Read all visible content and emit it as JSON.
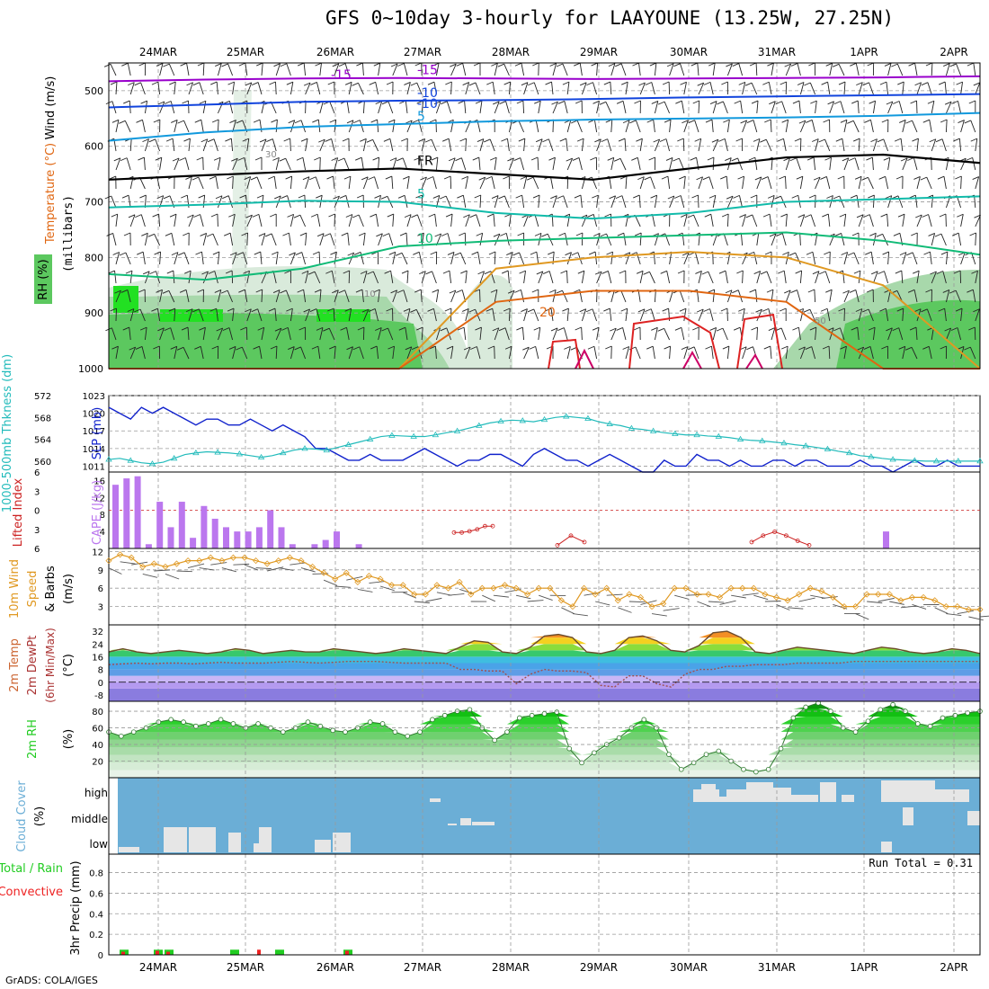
{
  "title": "GFS 0~10day 3-hourly for LAAYOUNE (13.25W, 27.25N)",
  "footer": "GrADS: COLA/IGES",
  "colors": {
    "rh_light": "#d9eadb",
    "rh_mid": "#a8d8ab",
    "rh_dark": "#5cc85f",
    "rh_bright": "#22e022",
    "t_violet": "#9900cc",
    "t_blue": "#1144dd",
    "t_sky": "#1199dd",
    "t_fr": "#000000",
    "t_teal": "#11bbaa",
    "t_green": "#11bb77",
    "t_orange": "#e09922",
    "t_dorange": "#e06611",
    "t_red": "#dd2222",
    "t_magenta": "#cc0066",
    "slp": "#1122cc",
    "thick": "#22bbbb",
    "cape": "#bb77ee",
    "li": "#cc2222",
    "wind": "#e09922",
    "dewpt": "#a05050",
    "rh2m": "#22cc22",
    "cloud": "#6baed6",
    "cloud_gap": "#e6e6e6",
    "precip_total": "#22cc22",
    "precip_conv": "#ee2222"
  },
  "chart_data": [
    {
      "type": "heatmap",
      "panel": "upper_air",
      "title": "GFS 0~10day 3-hourly for LAAYOUNE (13.25W, 27.25N)",
      "legend": [
        "Wind (m/s)",
        "Temperature (°C)",
        "RH (%)"
      ],
      "ylabel": "(millibars)",
      "y_reversed": true,
      "ylim": [
        1000,
        450
      ],
      "yticks": [
        500,
        600,
        700,
        800,
        900,
        1000
      ],
      "x_ticks": [
        "24MAR",
        "25MAR",
        "26MAR",
        "27MAR",
        "28MAR",
        "29MAR",
        "30MAR",
        "31MAR",
        "1APR",
        "2APR"
      ],
      "contour_labels": [
        "-15",
        "-10",
        "-5",
        "FR",
        "5",
        "10",
        "15",
        "20",
        "10",
        "30",
        "50"
      ],
      "temperature_levels": [
        {
          "label": "-15",
          "pressure": [
            483,
            480,
            478,
            477,
            478,
            479,
            478,
            477,
            476,
            474
          ]
        },
        {
          "label": "-10",
          "pressure": [
            530,
            525,
            520,
            518,
            517,
            515,
            512,
            510,
            508,
            506
          ]
        },
        {
          "label": "-5",
          "pressure": [
            590,
            575,
            565,
            560,
            555,
            552,
            550,
            548,
            545,
            540
          ]
        },
        {
          "label": "FR",
          "pressure": [
            660,
            652,
            645,
            640,
            650,
            660,
            640,
            620,
            615,
            630
          ]
        },
        {
          "label": "5",
          "pressure": [
            710,
            705,
            698,
            700,
            720,
            730,
            720,
            700,
            695,
            690
          ]
        },
        {
          "label": "10",
          "pressure": [
            830,
            840,
            820,
            780,
            770,
            765,
            760,
            755,
            770,
            795
          ]
        },
        {
          "label": "15",
          "pressure": [
            1000,
            1000,
            1000,
            1000,
            820,
            800,
            790,
            800,
            850,
            1000
          ]
        },
        {
          "label": "20",
          "pressure": [
            1000,
            1000,
            1000,
            1000,
            880,
            860,
            860,
            880,
            1000,
            1000
          ]
        }
      ]
    },
    {
      "type": "line",
      "panel": "slp_thickness",
      "ylabel_left": "1000-500mb Thkness (dm)",
      "ylabel_right": "SLP (mb)",
      "yticks_left": [
        560,
        564,
        568,
        572
      ],
      "yticks_right": [
        1011,
        1014,
        1017,
        1020,
        1023
      ],
      "ylim_right": [
        1010,
        1023
      ],
      "series": [
        {
          "name": "SLP (mb)",
          "values": [
            1021,
            1020,
            1019,
            1021,
            1020,
            1021,
            1020,
            1019,
            1018,
            1019,
            1019,
            1018,
            1018,
            1019,
            1018,
            1017,
            1018,
            1017,
            1016,
            1014,
            1014,
            1013,
            1012,
            1012,
            1013,
            1012,
            1012,
            1012,
            1013,
            1014,
            1013,
            1012,
            1011,
            1012,
            1012,
            1013,
            1013,
            1012,
            1011,
            1013,
            1014,
            1013,
            1012,
            1012,
            1011,
            1012,
            1013,
            1012,
            1011,
            1010,
            1010,
            1012,
            1011,
            1011,
            1013,
            1012,
            1012,
            1011,
            1012,
            1011,
            1011,
            1012,
            1012,
            1011,
            1012,
            1012,
            1011,
            1011,
            1011,
            1012,
            1011,
            1011,
            1010,
            1011,
            1012,
            1011,
            1011,
            1012,
            1011,
            1011,
            1011
          ]
        },
        {
          "name": "1000-500mb Thkness (dm)",
          "values": [
            560.3,
            560.5,
            560.1,
            559.7,
            559.5,
            559.8,
            560.5,
            561.2,
            561.5,
            561.7,
            561.6,
            561.5,
            561.3,
            561.0,
            560.7,
            561.0,
            561.5,
            562.0,
            562.3,
            562.2,
            562.0,
            562.5,
            563.0,
            563.5,
            564.0,
            564.5,
            564.7,
            564.6,
            564.5,
            564.5,
            564.8,
            565.2,
            565.5,
            566.0,
            566.5,
            567.0,
            567.3,
            567.5,
            567.4,
            567.2,
            567.6,
            568.0,
            568.2,
            568.0,
            567.8,
            567.2,
            566.8,
            566.5,
            566.0,
            565.8,
            565.5,
            565.2,
            565.0,
            564.8,
            564.8,
            564.6,
            564.5,
            564.3,
            564.0,
            563.8,
            563.7,
            563.5,
            563.3,
            563.0,
            562.8,
            562.5,
            562.2,
            561.8,
            561.5,
            561.0,
            560.8,
            560.5,
            560.3,
            560.2,
            560.1,
            560.0,
            560.0,
            560.0,
            560.0,
            560.0,
            560.0
          ]
        }
      ]
    },
    {
      "type": "bar",
      "panel": "cape_li",
      "ylabel_left": "Lifted Index",
      "ylabel_right": "CAPE (J/kg)",
      "yticks_left": [
        -6,
        -3,
        0,
        3,
        6
      ],
      "yticks_right": [
        4,
        8,
        12,
        16
      ],
      "series": [
        {
          "name": "CAPE (J/kg)",
          "values": [
            15,
            16.5,
            17,
            1,
            11,
            5,
            11,
            2.5,
            10,
            7,
            5,
            4,
            4,
            5,
            9,
            5,
            1,
            0,
            1,
            2,
            4,
            0,
            1
          ]
        },
        {
          "name": "Lifted Index",
          "values": [
            null,
            null,
            null,
            null,
            null,
            null,
            null,
            null,
            null,
            null,
            null,
            null,
            null,
            null,
            null,
            null,
            null,
            null,
            null,
            null,
            null,
            null,
            null,
            null,
            null,
            null,
            null,
            null,
            null,
            null,
            null,
            null,
            null,
            null,
            null,
            3.5,
            3.5,
            3.3,
            3.5,
            4,
            3,
            3.4,
            4.5,
            6,
            6,
            6,
            4.5,
            4,
            3.8,
            4.5
          ]
        }
      ]
    },
    {
      "type": "line",
      "panel": "wind10m",
      "ylabel": "10m Wind Speed & Barbs (m/s)",
      "yticks": [
        3,
        6,
        9,
        12
      ],
      "ylim": [
        0,
        12
      ],
      "series": [
        {
          "name": "10m Wind Speed",
          "values": [
            10.5,
            11.5,
            11,
            9.5,
            10,
            9.5,
            10,
            10.5,
            10.5,
            11,
            10.5,
            11,
            11,
            10.5,
            10,
            10.5,
            11,
            10.5,
            9.5,
            8.5,
            7.5,
            8.5,
            7,
            8,
            7.5,
            6.5,
            6.5,
            5,
            5,
            6.5,
            6,
            7,
            5,
            6,
            6,
            6.5,
            6,
            5,
            6,
            6,
            4,
            3,
            6,
            5,
            6,
            4,
            5,
            4.5,
            3,
            3.5,
            6,
            6,
            5,
            5,
            4.5,
            6,
            6,
            6,
            5,
            4.5,
            4,
            5,
            6,
            5.5,
            4.5,
            3,
            3,
            5,
            5,
            5,
            4,
            4.5,
            4.5,
            4,
            3,
            3,
            2.5,
            2.5
          ]
        }
      ]
    },
    {
      "type": "area",
      "panel": "temp2m",
      "ylabel": "2m Temp 2m DewPt (6hr Min/Max) (°C)",
      "yticks": [
        -8,
        0,
        8,
        16,
        24,
        32
      ],
      "ylim": [
        -12,
        36
      ],
      "series": [
        {
          "name": "2m Temp",
          "values": [
            19,
            21,
            19,
            18,
            19,
            20,
            19,
            18,
            19,
            21,
            20,
            18,
            19,
            20,
            19,
            19,
            21,
            20,
            19,
            18,
            19,
            21,
            20,
            19,
            18,
            22,
            26,
            25,
            19,
            18,
            22,
            29,
            30,
            28,
            19,
            18,
            20,
            28,
            29,
            26,
            20,
            19,
            23,
            31,
            32,
            28,
            19,
            18,
            20,
            22,
            21,
            20,
            19,
            18,
            20,
            22,
            21,
            19,
            18,
            19,
            21,
            20,
            18
          ]
        },
        {
          "name": "2m DewPt",
          "values": [
            11,
            11.5,
            12,
            11.5,
            12,
            12,
            11.5,
            12,
            12.5,
            12,
            12,
            12,
            12.5,
            13,
            12.5,
            12,
            12.5,
            13,
            13,
            13,
            12.5,
            12,
            12,
            12,
            12,
            8,
            8,
            7,
            7,
            -1,
            5,
            8,
            7,
            7,
            6,
            -2,
            -3,
            4,
            4,
            -1,
            -3,
            5,
            8,
            8,
            10,
            10,
            11,
            11,
            11,
            12,
            12,
            12,
            12,
            13,
            13,
            13,
            13,
            13,
            13,
            13,
            13,
            13,
            13
          ]
        }
      ]
    },
    {
      "type": "area",
      "panel": "rh2m",
      "ylabel": "2m RH (%)",
      "yticks": [
        20,
        40,
        60,
        80
      ],
      "ylim": [
        0,
        92
      ],
      "series": [
        {
          "name": "2m RH",
          "values": [
            55,
            50,
            55,
            60,
            67,
            70,
            67,
            62,
            65,
            70,
            65,
            60,
            65,
            60,
            55,
            60,
            67,
            62,
            57,
            55,
            60,
            67,
            65,
            55,
            50,
            55,
            70,
            75,
            80,
            82,
            60,
            45,
            55,
            72,
            75,
            77,
            79,
            35,
            18,
            30,
            40,
            48,
            60,
            70,
            60,
            28,
            10,
            18,
            28,
            32,
            20,
            10,
            7,
            10,
            35,
            72,
            85,
            90,
            80,
            60,
            55,
            68,
            82,
            88,
            80,
            65,
            62,
            72,
            75,
            78,
            80
          ]
        }
      ]
    },
    {
      "type": "bar",
      "panel": "cloud_cover",
      "ylabel": "Cloud Cover (%)",
      "categories": [
        "low",
        "middle",
        "high"
      ]
    },
    {
      "type": "bar",
      "panel": "precip",
      "ylabel": "3hr Precip (mm)",
      "legend": [
        "Total / Rain",
        "Convective"
      ],
      "yticks": [
        0,
        0.2,
        0.4,
        0.6,
        0.8
      ],
      "ylim": [
        0,
        0.98
      ],
      "annotation": "Run Total = 0.31",
      "series": [
        {
          "name": "Total / Rain",
          "values": [
            0.05,
            0,
            0,
            0,
            0,
            0,
            0,
            0.05,
            0.05,
            0,
            0,
            0,
            0,
            0,
            0,
            0.05,
            0,
            0,
            0,
            0.05,
            0,
            0,
            0,
            0,
            0,
            0,
            0,
            0,
            0,
            0.05
          ]
        },
        {
          "name": "Convective",
          "values": [
            0.03,
            0,
            0,
            0,
            0,
            0,
            0,
            0.04,
            0.03,
            0,
            0,
            0,
            0,
            0,
            0,
            0,
            0,
            0.05,
            0,
            0,
            0,
            0,
            0,
            0,
            0,
            0,
            0,
            0,
            0,
            0.04
          ]
        }
      ]
    }
  ]
}
